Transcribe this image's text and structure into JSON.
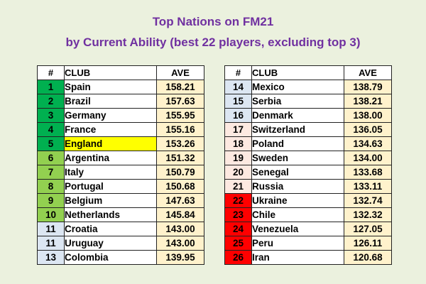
{
  "title_line1": "Top Nations on FM21",
  "title_line2": "by Current Ability (best 22 players, excluding top 3)",
  "headers": {
    "num": "#",
    "club": "CLUB",
    "ave": "AVE"
  },
  "colors": {
    "background": "#ebf1de",
    "title": "#7030a0",
    "ave_cell": "#fff2cc",
    "highlight": "#ffff00"
  },
  "left_table": [
    {
      "rank": "1",
      "club": "Spain",
      "ave": "158.21",
      "rank_color": "#00b050"
    },
    {
      "rank": "2",
      "club": "Brazil",
      "ave": "157.63",
      "rank_color": "#00b050"
    },
    {
      "rank": "3",
      "club": "Germany",
      "ave": "155.95",
      "rank_color": "#00b050"
    },
    {
      "rank": "4",
      "club": "France",
      "ave": "155.16",
      "rank_color": "#00b050"
    },
    {
      "rank": "5",
      "club": "England",
      "ave": "153.26",
      "rank_color": "#00b050",
      "highlight": true
    },
    {
      "rank": "6",
      "club": "Argentina",
      "ave": "151.32",
      "rank_color": "#92d050"
    },
    {
      "rank": "7",
      "club": "Italy",
      "ave": "150.79",
      "rank_color": "#92d050"
    },
    {
      "rank": "8",
      "club": "Portugal",
      "ave": "150.68",
      "rank_color": "#92d050"
    },
    {
      "rank": "9",
      "club": "Belgium",
      "ave": "147.63",
      "rank_color": "#92d050"
    },
    {
      "rank": "10",
      "club": "Netherlands",
      "ave": "145.84",
      "rank_color": "#92d050"
    },
    {
      "rank": "11",
      "club": "Croatia",
      "ave": "143.00",
      "rank_color": "#dce6f2"
    },
    {
      "rank": "11",
      "club": "Uruguay",
      "ave": "143.00",
      "rank_color": "#dce6f2"
    },
    {
      "rank": "13",
      "club": "Colombia",
      "ave": "139.95",
      "rank_color": "#dce6f2"
    }
  ],
  "right_table": [
    {
      "rank": "14",
      "club": "Mexico",
      "ave": "138.79",
      "rank_color": "#dce6f2"
    },
    {
      "rank": "15",
      "club": "Serbia",
      "ave": "138.21",
      "rank_color": "#dce6f2"
    },
    {
      "rank": "16",
      "club": "Denmark",
      "ave": "138.00",
      "rank_color": "#dce6f2"
    },
    {
      "rank": "17",
      "club": "Switzerland",
      "ave": "136.05",
      "rank_color": "#fde9e1"
    },
    {
      "rank": "18",
      "club": "Poland",
      "ave": "134.63",
      "rank_color": "#fde9e1"
    },
    {
      "rank": "19",
      "club": "Sweden",
      "ave": "134.00",
      "rank_color": "#fde9e1"
    },
    {
      "rank": "20",
      "club": "Senegal",
      "ave": "133.68",
      "rank_color": "#fde9e1"
    },
    {
      "rank": "21",
      "club": "Russia",
      "ave": "133.11",
      "rank_color": "#fde9e1"
    },
    {
      "rank": "22",
      "club": "Ukraine",
      "ave": "132.74",
      "rank_color": "#ff0000"
    },
    {
      "rank": "23",
      "club": "Chile",
      "ave": "132.32",
      "rank_color": "#ff0000"
    },
    {
      "rank": "24",
      "club": "Venezuela",
      "ave": "127.05",
      "rank_color": "#ff0000"
    },
    {
      "rank": "25",
      "club": "Peru",
      "ave": "126.11",
      "rank_color": "#ff0000"
    },
    {
      "rank": "26",
      "club": "Iran",
      "ave": "120.68",
      "rank_color": "#ff0000"
    }
  ]
}
